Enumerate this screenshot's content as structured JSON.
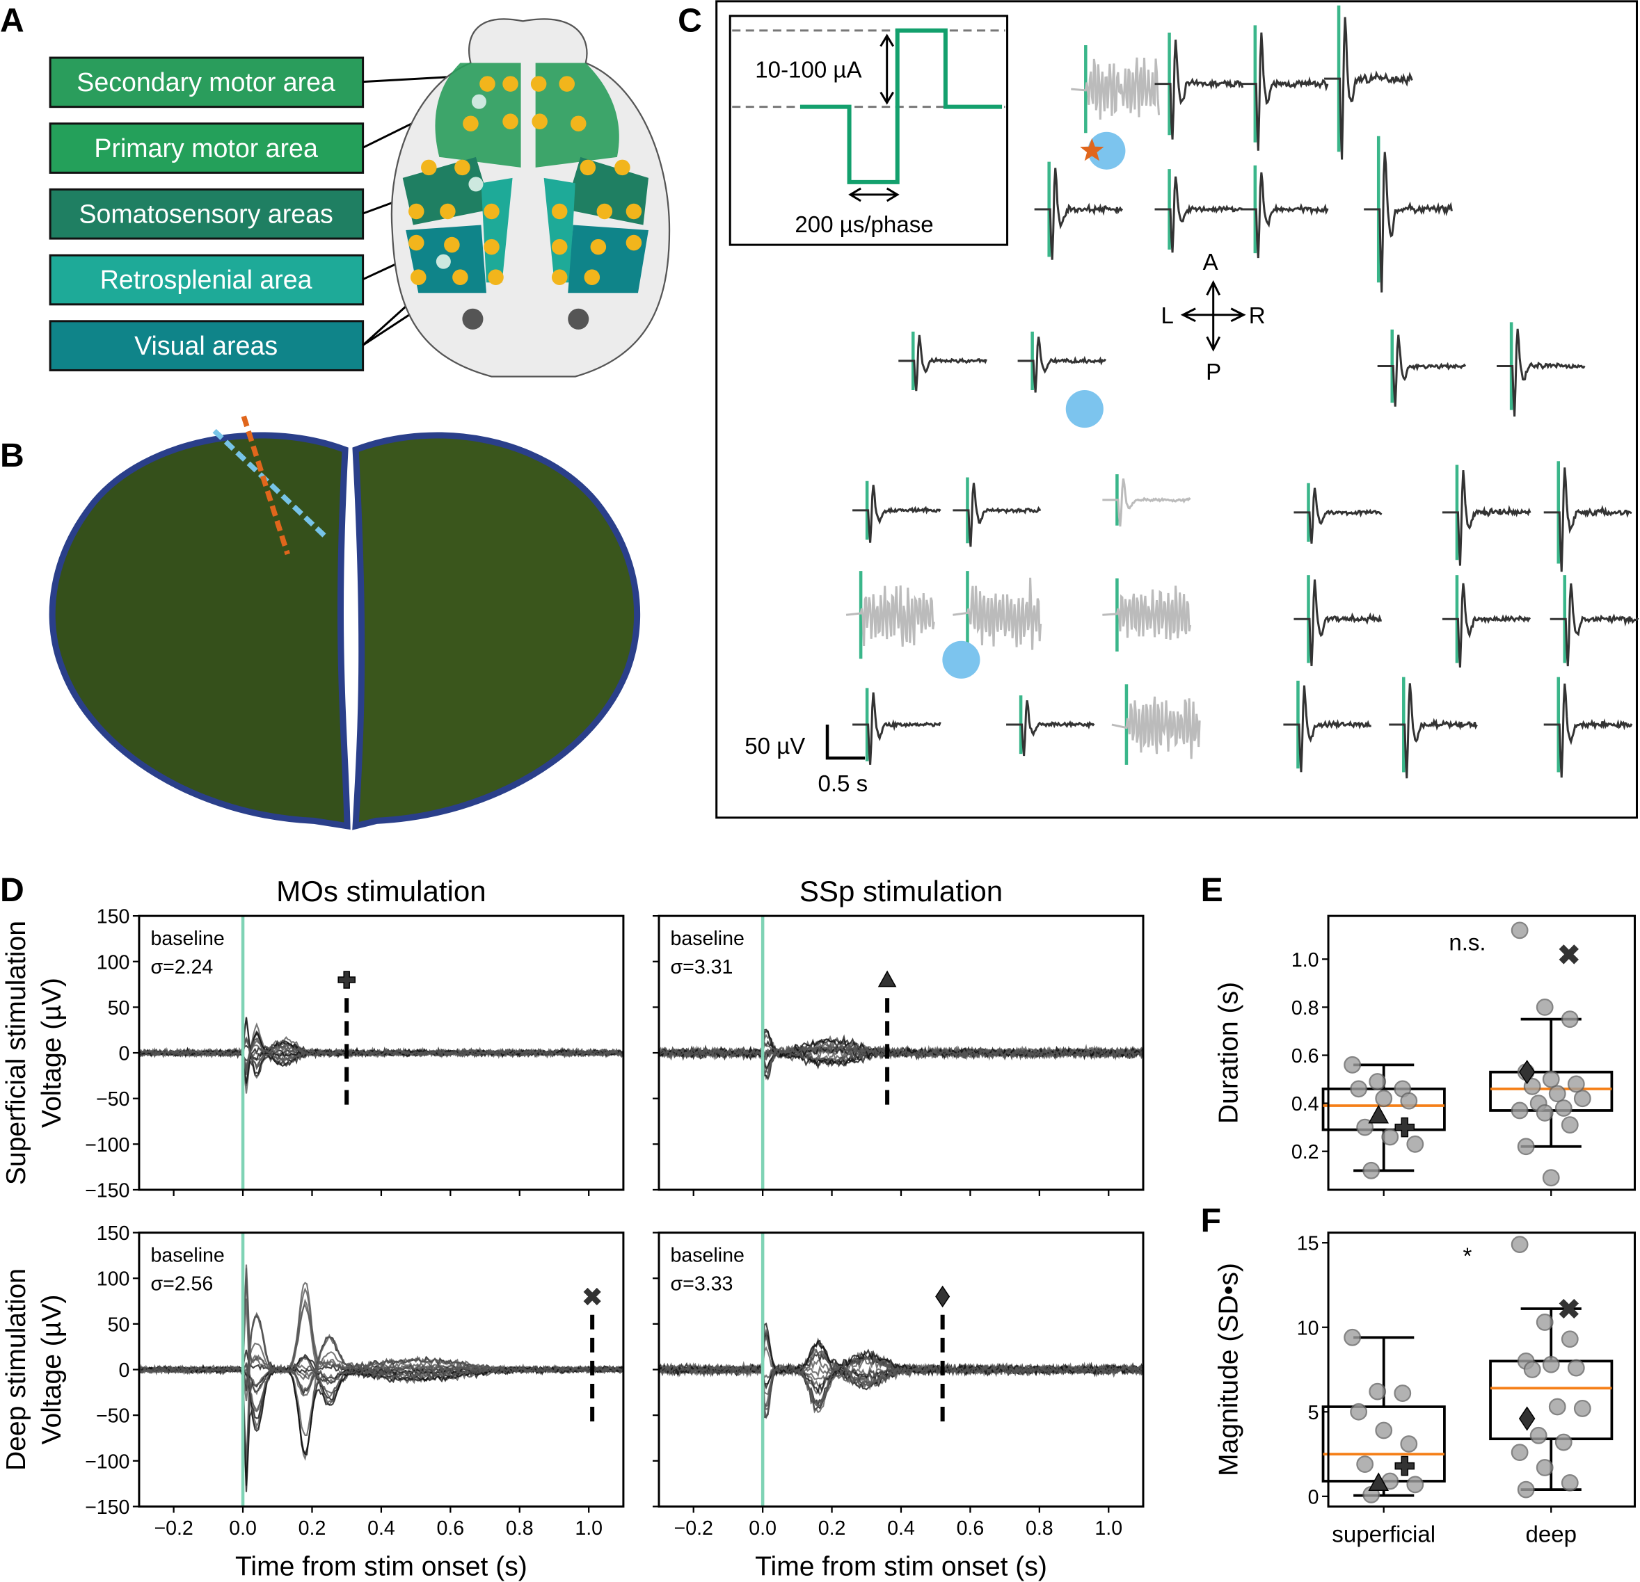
{
  "panel_letters": [
    "A",
    "B",
    "C",
    "D",
    "E",
    "F"
  ],
  "panel_a": {
    "regions": [
      {
        "label": "Secondary motor area",
        "color": "#2a9d5c"
      },
      {
        "label": "Primary motor area",
        "color": "#24a05a"
      },
      {
        "label": "Somatosensory areas",
        "color": "#1f7f62"
      },
      {
        "label": "Retrosplenial area",
        "color": "#1eaa98"
      },
      {
        "label": "Visual areas",
        "color": "#0f8489"
      }
    ],
    "electrode_color": "#f2b51c"
  },
  "panel_c": {
    "inset": {
      "amplitude_label": "10-100 µA",
      "phase_label": "200 µs/phase",
      "waveform_color": "#13a06d"
    },
    "compass": {
      "anterior": "A",
      "posterior": "P",
      "left": "L",
      "right": "R"
    },
    "scale_bar": {
      "voltage_label": "50 µV",
      "time_label": "0.5 s"
    },
    "stim_marker_color": "#3ab68a",
    "stim_site_color": "#7cc4ee",
    "star_color": "#e0661c"
  },
  "chart_data": [
    {
      "type": "line",
      "panel": "D",
      "title": "MOs stimulation",
      "row": "Superficial stimulation",
      "ylabel": "Superficial stimulation\nVoltage (µV)",
      "xlabel": "",
      "baseline_label": "baseline",
      "sigma_label": "σ=2.24",
      "marker": "plus",
      "marker_time": 0.3,
      "xlim": [
        -0.3,
        1.1
      ],
      "ylim": [
        -150,
        150
      ],
      "stim_onset": 0.0
    },
    {
      "type": "line",
      "panel": "D",
      "title": "SSp stimulation",
      "row": "Superficial stimulation",
      "ylabel": "",
      "xlabel": "",
      "baseline_label": "baseline",
      "sigma_label": "σ=3.31",
      "marker": "triangle",
      "marker_time": 0.36,
      "xlim": [
        -0.3,
        1.1
      ],
      "ylim": [
        -150,
        150
      ],
      "stim_onset": 0.0
    },
    {
      "type": "line",
      "panel": "D",
      "title": "",
      "row": "Deep stimulation",
      "ylabel": "Deep stimulation\nVoltage (µV)",
      "xlabel": "Time from stim onset (s)",
      "baseline_label": "baseline",
      "sigma_label": "σ=2.56",
      "marker": "x",
      "marker_time": 1.01,
      "xlim": [
        -0.3,
        1.1
      ],
      "ylim": [
        -150,
        150
      ],
      "stim_onset": 0.0
    },
    {
      "type": "line",
      "panel": "D",
      "title": "",
      "row": "Deep stimulation",
      "ylabel": "",
      "xlabel": "Time from stim onset (s)",
      "baseline_label": "baseline",
      "sigma_label": "σ=3.33",
      "marker": "diamond",
      "marker_time": 0.52,
      "xlim": [
        -0.3,
        1.1
      ],
      "ylim": [
        -150,
        150
      ],
      "stim_onset": 0.0
    },
    {
      "type": "box",
      "panel": "E",
      "ylabel": "Duration (s)",
      "annotation": "n.s.",
      "categories": [
        "superficial",
        "deep"
      ],
      "ylim": [
        0.04,
        1.18
      ],
      "boxes": [
        {
          "whisker_low": 0.12,
          "q1": 0.29,
          "median": 0.39,
          "q3": 0.46,
          "whisker_high": 0.56
        },
        {
          "whisker_low": 0.22,
          "q1": 0.37,
          "median": 0.46,
          "q3": 0.53,
          "whisker_high": 0.75
        }
      ],
      "points": [
        [
          0.56,
          0.49,
          0.46,
          0.46,
          0.42,
          0.41,
          0.3,
          0.26,
          0.23,
          0.12
        ],
        [
          1.12,
          0.8,
          0.75,
          0.53,
          0.5,
          0.48,
          0.47,
          0.44,
          0.42,
          0.4,
          0.38,
          0.37,
          0.36,
          0.31,
          0.22,
          0.09
        ]
      ],
      "highlighted": [
        {
          "category": "superficial",
          "marker": "triangle",
          "value": 0.35
        },
        {
          "category": "superficial",
          "marker": "plus",
          "value": 0.3
        },
        {
          "category": "deep",
          "marker": "diamond",
          "value": 0.53
        },
        {
          "category": "deep",
          "marker": "x",
          "value": 1.02
        }
      ],
      "yticks": [
        0.2,
        0.4,
        0.6,
        0.8,
        1.0
      ]
    },
    {
      "type": "box",
      "panel": "F",
      "ylabel": "Magnitude (SD•s)",
      "annotation": "*",
      "categories": [
        "superficial",
        "deep"
      ],
      "ylim": [
        -0.6,
        15.6
      ],
      "boxes": [
        {
          "whisker_low": 0.05,
          "q1": 0.9,
          "median": 2.5,
          "q3": 5.3,
          "whisker_high": 9.4
        },
        {
          "whisker_low": 0.4,
          "q1": 3.4,
          "median": 6.4,
          "q3": 8.0,
          "whisker_high": 11.1
        }
      ],
      "points": [
        [
          9.4,
          6.2,
          6.1,
          5.0,
          3.9,
          3.1,
          1.9,
          0.9,
          0.7,
          0.1
        ],
        [
          14.9,
          10.3,
          9.3,
          8.0,
          7.8,
          7.6,
          7.5,
          5.3,
          5.2,
          3.6,
          3.2,
          2.6,
          1.7,
          0.8,
          0.4
        ]
      ],
      "highlighted": [
        {
          "category": "superficial",
          "marker": "triangle",
          "value": 0.8
        },
        {
          "category": "superficial",
          "marker": "plus",
          "value": 1.8
        },
        {
          "category": "deep",
          "marker": "diamond",
          "value": 4.6
        },
        {
          "category": "deep",
          "marker": "x",
          "value": 11.1
        }
      ],
      "yticks": [
        0,
        5,
        10,
        15
      ]
    }
  ],
  "d_xticks": [
    "−0.2",
    "0.0",
    "0.2",
    "0.4",
    "0.6",
    "0.8",
    "1.0"
  ],
  "d_yticks": [
    "150",
    "100",
    "50",
    "0",
    "−50",
    "−100",
    "−150"
  ],
  "colors": {
    "median": "#f57f17",
    "points": "#a0a0a0",
    "stim_line": "#7fd3b5"
  }
}
